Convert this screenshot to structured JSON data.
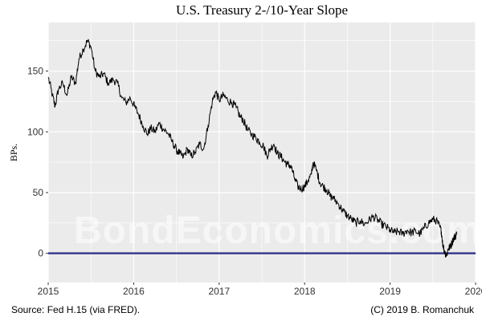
{
  "chart_data": {
    "type": "line",
    "title": "U.S. Treasury 2-/10-Year Slope",
    "xlabel": "",
    "ylabel": "BPs.",
    "x_ticks": [
      "2015",
      "2016",
      "2017",
      "2018",
      "2019",
      "2020"
    ],
    "y_ticks": [
      0,
      50,
      100,
      150
    ],
    "xlim": [
      2015.0,
      2020.0
    ],
    "ylim": [
      -24,
      190
    ],
    "grid": true,
    "legend": "none",
    "reference_line": {
      "y": 0,
      "color": "#3b3b8f"
    },
    "series": [
      {
        "color": "#000000",
        "points": [
          [
            2015.0,
            145
          ],
          [
            2015.05,
            130
          ],
          [
            2015.08,
            121
          ],
          [
            2015.12,
            135
          ],
          [
            2015.17,
            140
          ],
          [
            2015.22,
            130
          ],
          [
            2015.27,
            145
          ],
          [
            2015.32,
            140
          ],
          [
            2015.36,
            160
          ],
          [
            2015.41,
            168
          ],
          [
            2015.46,
            175
          ],
          [
            2015.5,
            170
          ],
          [
            2015.55,
            150
          ],
          [
            2015.6,
            145
          ],
          [
            2015.65,
            148
          ],
          [
            2015.7,
            140
          ],
          [
            2015.76,
            143
          ],
          [
            2015.81,
            140
          ],
          [
            2015.86,
            128
          ],
          [
            2015.91,
            124
          ],
          [
            2015.96,
            128
          ],
          [
            2016.01,
            121
          ],
          [
            2016.06,
            114
          ],
          [
            2016.11,
            105
          ],
          [
            2016.16,
            98
          ],
          [
            2016.2,
            103
          ],
          [
            2016.25,
            100
          ],
          [
            2016.3,
            107
          ],
          [
            2016.35,
            102
          ],
          [
            2016.4,
            99
          ],
          [
            2016.45,
            92
          ],
          [
            2016.5,
            85
          ],
          [
            2016.54,
            82
          ],
          [
            2016.58,
            79
          ],
          [
            2016.63,
            86
          ],
          [
            2016.67,
            80
          ],
          [
            2016.72,
            83
          ],
          [
            2016.77,
            90
          ],
          [
            2016.82,
            86
          ],
          [
            2016.87,
            105
          ],
          [
            2016.92,
            125
          ],
          [
            2016.96,
            133
          ],
          [
            2017.0,
            126
          ],
          [
            2017.05,
            130
          ],
          [
            2017.1,
            126
          ],
          [
            2017.15,
            124
          ],
          [
            2017.2,
            120
          ],
          [
            2017.24,
            113
          ],
          [
            2017.28,
            110
          ],
          [
            2017.33,
            102
          ],
          [
            2017.38,
            98
          ],
          [
            2017.43,
            95
          ],
          [
            2017.47,
            92
          ],
          [
            2017.52,
            88
          ],
          [
            2017.56,
            80
          ],
          [
            2017.6,
            86
          ],
          [
            2017.64,
            90
          ],
          [
            2017.68,
            82
          ],
          [
            2017.72,
            80
          ],
          [
            2017.76,
            76
          ],
          [
            2017.8,
            73
          ],
          [
            2017.84,
            72
          ],
          [
            2017.88,
            62
          ],
          [
            2017.92,
            55
          ],
          [
            2017.96,
            53
          ],
          [
            2018.0,
            55
          ],
          [
            2018.04,
            60
          ],
          [
            2018.08,
            65
          ],
          [
            2018.1,
            75
          ],
          [
            2018.14,
            68
          ],
          [
            2018.18,
            58
          ],
          [
            2018.22,
            55
          ],
          [
            2018.26,
            52
          ],
          [
            2018.3,
            47
          ],
          [
            2018.34,
            45
          ],
          [
            2018.4,
            40
          ],
          [
            2018.45,
            35
          ],
          [
            2018.5,
            31
          ],
          [
            2018.55,
            28
          ],
          [
            2018.6,
            25
          ],
          [
            2018.65,
            27
          ],
          [
            2018.7,
            24
          ],
          [
            2018.75,
            27
          ],
          [
            2018.8,
            30
          ],
          [
            2018.85,
            28
          ],
          [
            2018.9,
            24
          ],
          [
            2018.95,
            22
          ],
          [
            2019.0,
            19
          ],
          [
            2019.05,
            17
          ],
          [
            2019.1,
            18
          ],
          [
            2019.15,
            16
          ],
          [
            2019.2,
            19
          ],
          [
            2019.25,
            17
          ],
          [
            2019.3,
            18
          ],
          [
            2019.35,
            16
          ],
          [
            2019.4,
            21
          ],
          [
            2019.45,
            25
          ],
          [
            2019.5,
            28
          ],
          [
            2019.54,
            27
          ],
          [
            2019.58,
            22
          ],
          [
            2019.6,
            18
          ],
          [
            2019.62,
            6
          ],
          [
            2019.64,
            1
          ],
          [
            2019.66,
            -2
          ],
          [
            2019.68,
            4
          ],
          [
            2019.7,
            5
          ],
          [
            2019.72,
            8
          ],
          [
            2019.74,
            12
          ],
          [
            2019.76,
            14
          ],
          [
            2019.78,
            16
          ]
        ]
      }
    ],
    "source": "Source: Fed H.15 (via FRED).",
    "copyright": "(C) 2019 B. Romanchuk",
    "watermark": "BondEconomics.com",
    "colors": {
      "panel_bg": "#ebebeb",
      "grid": "#ffffff",
      "line": "#000000",
      "zero_line": "#3b3b8f"
    }
  }
}
